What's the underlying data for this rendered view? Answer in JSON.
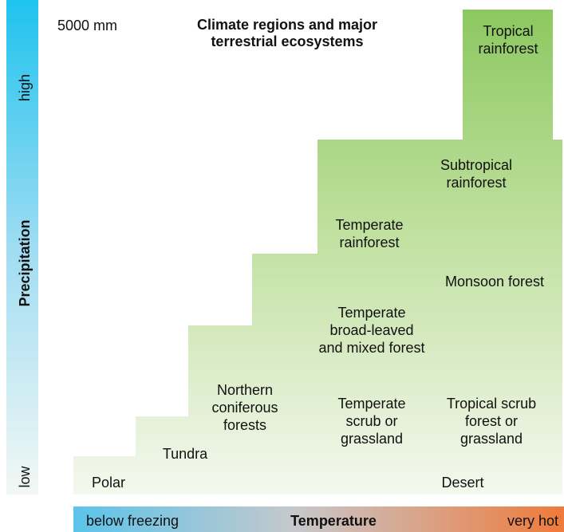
{
  "title": [
    "Climate regions and major",
    "terrestrial ecosystems"
  ],
  "precipitation_axis": {
    "label": "Precipitation",
    "high": "high",
    "low": "low",
    "max": "5000 mm"
  },
  "temperature_axis": {
    "label": "Temperature",
    "low": "below freezing",
    "high": "very hot"
  },
  "ecosystems": [
    {
      "lines": [
        "Tropical",
        "rainforest"
      ]
    },
    {
      "lines": [
        "Subtropical",
        "rainforest"
      ]
    },
    {
      "lines": [
        "Temperate",
        "rainforest"
      ]
    },
    {
      "lines": [
        "Monsoon forest"
      ]
    },
    {
      "lines": [
        "Temperate",
        "broad-leaved",
        "and mixed forest"
      ]
    },
    {
      "lines": [
        "Northern",
        "coniferous",
        "forests"
      ]
    },
    {
      "lines": [
        "Temperate",
        "scrub or",
        "grassland"
      ]
    },
    {
      "lines": [
        "Tropical scrub",
        "forest or",
        "grassland"
      ]
    },
    {
      "lines": [
        "Tundra"
      ]
    },
    {
      "lines": [
        "Polar"
      ]
    },
    {
      "lines": [
        "Desert"
      ]
    }
  ]
}
